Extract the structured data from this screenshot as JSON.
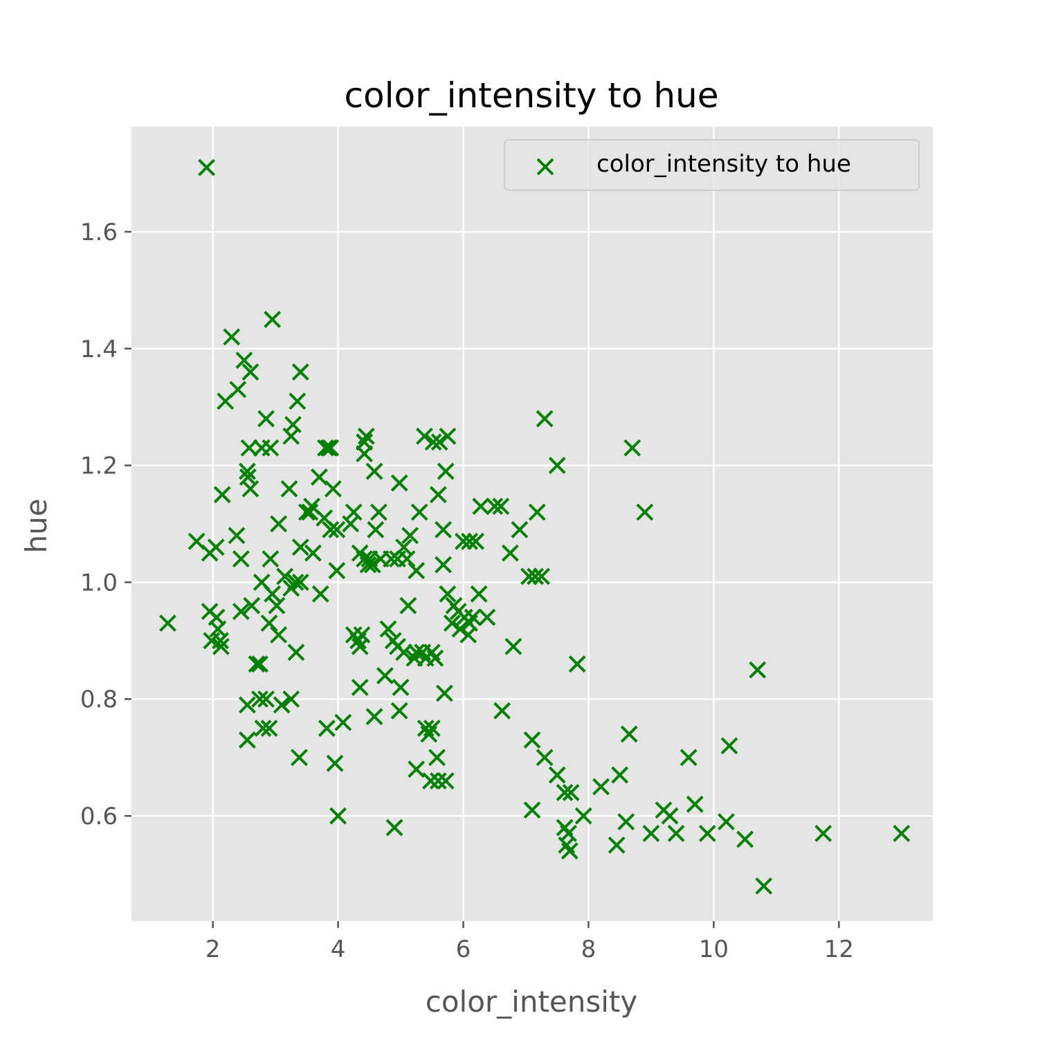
{
  "chart_data": {
    "type": "scatter",
    "title": "color_intensity to hue",
    "xlabel": "color_intensity",
    "ylabel": "hue",
    "xlim": [
      0.7,
      13.5
    ],
    "ylim": [
      0.42,
      1.78
    ],
    "xticks": [
      2,
      4,
      6,
      8,
      10,
      12
    ],
    "yticks": [
      0.6,
      0.8,
      1.0,
      1.2,
      1.4,
      1.6
    ],
    "xtick_labels": [
      "2",
      "4",
      "6",
      "8",
      "10",
      "12"
    ],
    "ytick_labels": [
      "0.6",
      "0.8",
      "1.0",
      "1.2",
      "1.4",
      "1.6"
    ],
    "grid": true,
    "background": "#e5e5e5",
    "legend": {
      "position": "upper right",
      "entries": [
        "color_intensity to hue"
      ]
    },
    "series": [
      {
        "name": "color_intensity to hue",
        "marker": "x",
        "color": "#008000",
        "points": [
          [
            1.9,
            1.71
          ],
          [
            1.28,
            0.93
          ],
          [
            1.74,
            1.07
          ],
          [
            1.95,
            1.05
          ],
          [
            2.05,
            1.06
          ],
          [
            1.95,
            0.95
          ],
          [
            2.06,
            0.94
          ],
          [
            2.08,
            0.92
          ],
          [
            1.98,
            0.9
          ],
          [
            2.12,
            0.9
          ],
          [
            2.13,
            0.89
          ],
          [
            2.15,
            1.15
          ],
          [
            2.2,
            1.31
          ],
          [
            2.3,
            1.42
          ],
          [
            2.4,
            1.33
          ],
          [
            2.5,
            1.38
          ],
          [
            2.6,
            1.36
          ],
          [
            2.38,
            1.08
          ],
          [
            2.45,
            1.04
          ],
          [
            2.58,
            1.23
          ],
          [
            2.55,
            1.19
          ],
          [
            2.56,
            1.18
          ],
          [
            2.6,
            1.16
          ],
          [
            2.45,
            0.95
          ],
          [
            2.62,
            0.96
          ],
          [
            2.7,
            0.86
          ],
          [
            2.75,
            0.86
          ],
          [
            2.55,
            0.79
          ],
          [
            2.75,
            0.8
          ],
          [
            2.85,
            0.8
          ],
          [
            2.55,
            0.73
          ],
          [
            2.8,
            0.75
          ],
          [
            2.9,
            0.75
          ],
          [
            2.95,
            1.45
          ],
          [
            2.85,
            1.28
          ],
          [
            2.78,
            1.23
          ],
          [
            2.92,
            1.23
          ],
          [
            3.05,
            1.1
          ],
          [
            2.92,
            1.04
          ],
          [
            2.78,
            1.0
          ],
          [
            2.95,
            0.98
          ],
          [
            3.02,
            0.96
          ],
          [
            2.9,
            0.93
          ],
          [
            3.05,
            0.91
          ],
          [
            3.1,
            0.79
          ],
          [
            3.25,
            0.8
          ],
          [
            3.38,
            0.7
          ],
          [
            3.4,
            1.36
          ],
          [
            3.35,
            1.31
          ],
          [
            3.28,
            1.27
          ],
          [
            3.25,
            1.25
          ],
          [
            3.22,
            1.16
          ],
          [
            3.15,
            1.01
          ],
          [
            3.25,
            0.99
          ],
          [
            3.32,
            1.0
          ],
          [
            3.4,
            1.0
          ],
          [
            3.33,
            0.88
          ],
          [
            3.4,
            1.06
          ],
          [
            3.5,
            1.12
          ],
          [
            3.55,
            1.12
          ],
          [
            3.58,
            1.13
          ],
          [
            3.6,
            1.05
          ],
          [
            3.7,
            1.18
          ],
          [
            3.8,
            1.23
          ],
          [
            3.85,
            1.23
          ],
          [
            3.88,
            1.23
          ],
          [
            3.78,
            1.11
          ],
          [
            3.88,
            1.09
          ],
          [
            3.92,
            1.16
          ],
          [
            3.98,
            1.09
          ],
          [
            3.72,
            0.98
          ],
          [
            3.98,
            1.02
          ],
          [
            3.82,
            0.75
          ],
          [
            4.08,
            0.76
          ],
          [
            3.95,
            0.69
          ],
          [
            4.0,
            0.6
          ],
          [
            4.2,
            1.1
          ],
          [
            4.25,
            1.12
          ],
          [
            4.42,
            1.22
          ],
          [
            4.45,
            1.25
          ],
          [
            4.42,
            1.24
          ],
          [
            4.58,
            1.19
          ],
          [
            4.65,
            1.12
          ],
          [
            4.35,
            1.05
          ],
          [
            4.42,
            1.04
          ],
          [
            4.48,
            1.03
          ],
          [
            4.5,
            1.04
          ],
          [
            4.55,
            1.03
          ],
          [
            4.6,
            1.09
          ],
          [
            4.68,
            1.04
          ],
          [
            4.25,
            0.91
          ],
          [
            4.32,
            0.9
          ],
          [
            4.38,
            0.91
          ],
          [
            4.35,
            0.89
          ],
          [
            4.35,
            0.82
          ],
          [
            4.58,
            0.77
          ],
          [
            4.85,
            1.04
          ],
          [
            4.95,
            1.04
          ],
          [
            4.98,
            1.17
          ],
          [
            5.05,
            1.06
          ],
          [
            5.1,
            1.04
          ],
          [
            5.15,
            1.08
          ],
          [
            5.25,
            1.02
          ],
          [
            5.3,
            1.12
          ],
          [
            4.8,
            0.92
          ],
          [
            4.75,
            0.84
          ],
          [
            4.88,
            0.9
          ],
          [
            4.95,
            0.89
          ],
          [
            5.05,
            0.88
          ],
          [
            5.12,
            0.96
          ],
          [
            5.0,
            0.82
          ],
          [
            4.98,
            0.78
          ],
          [
            5.22,
            0.87
          ],
          [
            5.25,
            0.88
          ],
          [
            5.35,
            0.88
          ],
          [
            5.4,
            0.87
          ],
          [
            5.5,
            0.88
          ],
          [
            5.55,
            0.87
          ],
          [
            5.4,
            0.75
          ],
          [
            5.45,
            0.74
          ],
          [
            5.5,
            0.75
          ],
          [
            5.25,
            0.68
          ],
          [
            5.48,
            0.66
          ],
          [
            5.58,
            0.7
          ],
          [
            5.6,
            0.66
          ],
          [
            5.72,
            0.66
          ],
          [
            4.9,
            0.58
          ],
          [
            5.38,
            1.25
          ],
          [
            5.52,
            1.24
          ],
          [
            5.62,
            1.24
          ],
          [
            5.75,
            1.25
          ],
          [
            5.72,
            1.19
          ],
          [
            5.6,
            1.15
          ],
          [
            5.68,
            1.09
          ],
          [
            5.68,
            1.03
          ],
          [
            5.75,
            0.98
          ],
          [
            5.85,
            0.96
          ],
          [
            5.92,
            0.95
          ],
          [
            5.82,
            0.93
          ],
          [
            5.95,
            0.92
          ],
          [
            5.7,
            0.81
          ],
          [
            6.0,
            1.07
          ],
          [
            6.1,
            1.07
          ],
          [
            6.2,
            1.07
          ],
          [
            6.02,
            0.94
          ],
          [
            6.08,
            0.91
          ],
          [
            6.1,
            0.93
          ],
          [
            6.15,
            0.94
          ],
          [
            6.25,
            0.98
          ],
          [
            6.28,
            1.13
          ],
          [
            6.38,
            0.94
          ],
          [
            6.5,
            1.13
          ],
          [
            6.6,
            1.13
          ],
          [
            6.75,
            1.05
          ],
          [
            6.62,
            0.78
          ],
          [
            6.8,
            0.89
          ],
          [
            6.9,
            1.09
          ],
          [
            7.05,
            1.01
          ],
          [
            7.15,
            1.01
          ],
          [
            7.25,
            1.01
          ],
          [
            7.18,
            1.12
          ],
          [
            7.3,
            1.28
          ],
          [
            7.5,
            1.2
          ],
          [
            7.1,
            0.73
          ],
          [
            7.3,
            0.7
          ],
          [
            7.1,
            0.61
          ],
          [
            7.5,
            0.67
          ],
          [
            7.62,
            0.64
          ],
          [
            7.72,
            0.64
          ],
          [
            7.62,
            0.58
          ],
          [
            7.68,
            0.57
          ],
          [
            7.65,
            0.55
          ],
          [
            7.7,
            0.54
          ],
          [
            7.82,
            0.86
          ],
          [
            7.92,
            0.6
          ],
          [
            8.2,
            0.65
          ],
          [
            8.45,
            0.55
          ],
          [
            8.5,
            0.67
          ],
          [
            8.6,
            0.59
          ],
          [
            8.65,
            0.74
          ],
          [
            8.7,
            1.23
          ],
          [
            8.9,
            1.12
          ],
          [
            9.0,
            0.57
          ],
          [
            9.2,
            0.61
          ],
          [
            9.3,
            0.6
          ],
          [
            9.4,
            0.57
          ],
          [
            9.6,
            0.7
          ],
          [
            9.7,
            0.62
          ],
          [
            9.9,
            0.57
          ],
          [
            10.2,
            0.59
          ],
          [
            10.25,
            0.72
          ],
          [
            10.5,
            0.56
          ],
          [
            10.7,
            0.85
          ],
          [
            10.8,
            0.48
          ],
          [
            11.75,
            0.57
          ],
          [
            13.0,
            0.57
          ]
        ]
      }
    ]
  }
}
